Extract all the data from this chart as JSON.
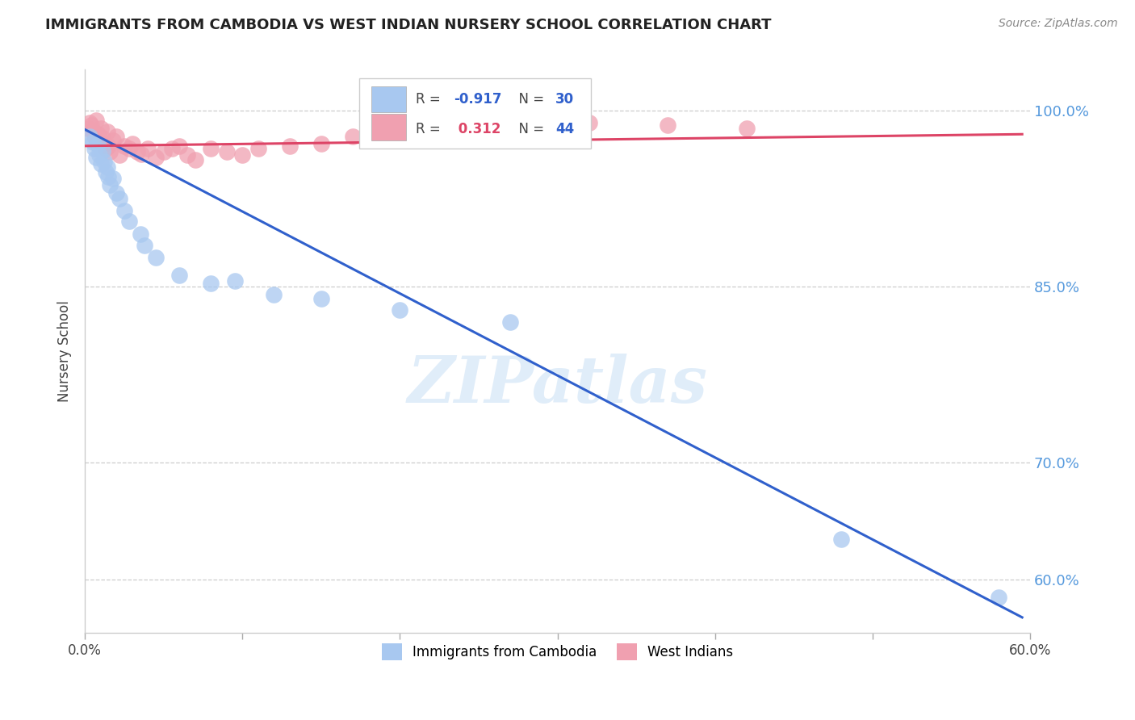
{
  "title": "IMMIGRANTS FROM CAMBODIA VS WEST INDIAN NURSERY SCHOOL CORRELATION CHART",
  "source": "Source: ZipAtlas.com",
  "ylabel": "Nursery School",
  "xlim": [
    0.0,
    0.6
  ],
  "ylim": [
    0.555,
    1.035
  ],
  "ytick_positions": [
    0.6,
    0.7,
    0.85,
    1.0
  ],
  "ytick_labels": [
    "60.0%",
    "70.0%",
    "85.0%",
    "100.0%"
  ],
  "xtick_positions": [
    0.0,
    0.1,
    0.2,
    0.3,
    0.4,
    0.5,
    0.6
  ],
  "xtick_labels": [
    "0.0%",
    "",
    "",
    "",
    "",
    "",
    "60.0%"
  ],
  "watermark_text": "ZIPatlas",
  "blue_R": -0.917,
  "blue_N": 30,
  "pink_R": 0.312,
  "pink_N": 44,
  "blue_color": "#a8c8f0",
  "pink_color": "#f0a0b0",
  "blue_line_color": "#3060cc",
  "pink_line_color": "#dd4466",
  "blue_scatter_x": [
    0.003,
    0.005,
    0.006,
    0.007,
    0.008,
    0.009,
    0.01,
    0.011,
    0.012,
    0.013,
    0.014,
    0.015,
    0.016,
    0.018,
    0.02,
    0.022,
    0.025,
    0.028,
    0.035,
    0.038,
    0.045,
    0.06,
    0.08,
    0.095,
    0.12,
    0.15,
    0.2,
    0.27,
    0.48,
    0.58
  ],
  "blue_scatter_y": [
    0.978,
    0.973,
    0.968,
    0.96,
    0.971,
    0.962,
    0.955,
    0.966,
    0.957,
    0.948,
    0.952,
    0.944,
    0.937,
    0.942,
    0.93,
    0.925,
    0.915,
    0.906,
    0.895,
    0.885,
    0.875,
    0.86,
    0.853,
    0.855,
    0.843,
    0.84,
    0.83,
    0.82,
    0.635,
    0.585
  ],
  "pink_scatter_x": [
    0.002,
    0.003,
    0.004,
    0.005,
    0.006,
    0.007,
    0.008,
    0.009,
    0.01,
    0.011,
    0.012,
    0.013,
    0.014,
    0.015,
    0.016,
    0.018,
    0.02,
    0.022,
    0.025,
    0.028,
    0.03,
    0.033,
    0.036,
    0.04,
    0.045,
    0.05,
    0.055,
    0.06,
    0.065,
    0.07,
    0.08,
    0.09,
    0.1,
    0.11,
    0.13,
    0.15,
    0.17,
    0.2,
    0.22,
    0.25,
    0.28,
    0.32,
    0.37,
    0.42
  ],
  "pink_scatter_y": [
    0.985,
    0.99,
    0.988,
    0.983,
    0.978,
    0.992,
    0.98,
    0.975,
    0.985,
    0.977,
    0.972,
    0.968,
    0.982,
    0.97,
    0.965,
    0.975,
    0.978,
    0.962,
    0.97,
    0.968,
    0.972,
    0.965,
    0.963,
    0.968,
    0.96,
    0.965,
    0.968,
    0.97,
    0.962,
    0.958,
    0.968,
    0.965,
    0.962,
    0.968,
    0.97,
    0.972,
    0.978,
    0.982,
    0.985,
    0.988,
    0.985,
    0.99,
    0.988,
    0.985
  ],
  "blue_trend_x": [
    0.0,
    0.595
  ],
  "blue_trend_y": [
    0.984,
    0.568
  ],
  "pink_trend_x": [
    0.0,
    0.595
  ],
  "pink_trend_y": [
    0.97,
    0.98
  ],
  "leg_R_blue_color": "#3060cc",
  "leg_R_pink_color": "#dd4466",
  "leg_N_color": "#3060cc"
}
